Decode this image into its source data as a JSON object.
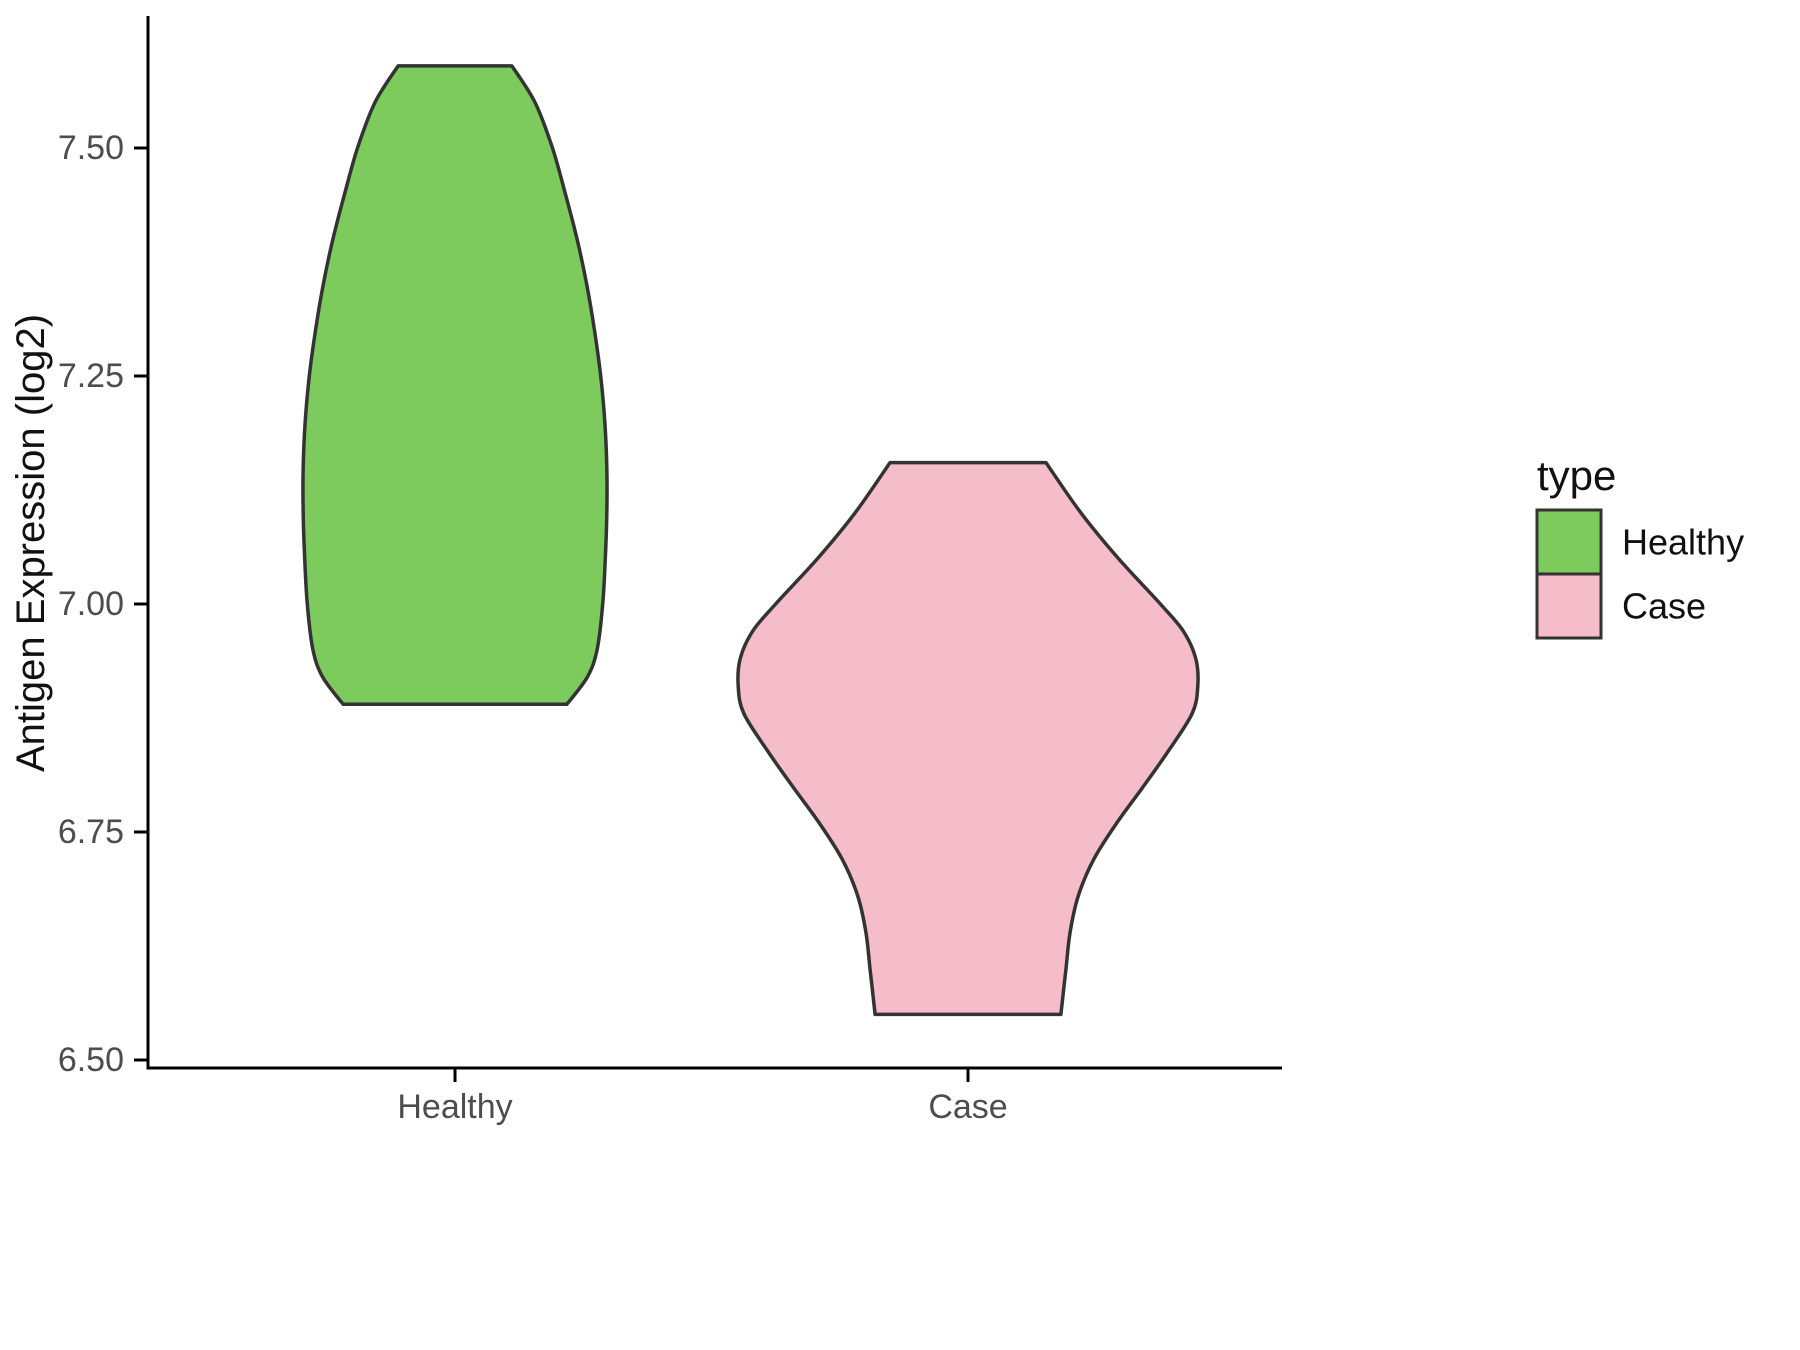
{
  "chart_data": {
    "type": "violin",
    "title": "",
    "xlabel": "",
    "ylabel": "Antigen Expression (log2)",
    "categories": [
      "Healthy",
      "Case"
    ],
    "y_ticks": [
      "6.50",
      "6.75",
      "7.00",
      "7.25",
      "7.50"
    ],
    "ylim": [
      6.5,
      7.6
    ],
    "grid": false,
    "outline_color": "#333333",
    "tick_label_color": "#4D4D4D",
    "legend": {
      "title": "type",
      "position": "right",
      "entries": [
        {
          "label": "Healthy",
          "color": "#7CCB5C"
        },
        {
          "label": "Case",
          "color": "#F5BCC9"
        }
      ]
    },
    "series": [
      {
        "name": "Healthy",
        "color": "#7CCB5C",
        "x_category": "Healthy",
        "y_range": [
          6.89,
          7.59
        ],
        "profile": [
          [
            7.59,
            0.111
          ],
          [
            7.55,
            0.156
          ],
          [
            7.5,
            0.19
          ],
          [
            7.45,
            0.215
          ],
          [
            7.4,
            0.238
          ],
          [
            7.35,
            0.257
          ],
          [
            7.3,
            0.272
          ],
          [
            7.25,
            0.284
          ],
          [
            7.2,
            0.292
          ],
          [
            7.15,
            0.296
          ],
          [
            7.1,
            0.296
          ],
          [
            7.05,
            0.293
          ],
          [
            7.0,
            0.288
          ],
          [
            6.95,
            0.277
          ],
          [
            6.92,
            0.258
          ],
          [
            6.89,
            0.218
          ]
        ]
      },
      {
        "name": "Case",
        "color": "#F5BCC9",
        "x_category": "Case",
        "y_range": [
          6.55,
          7.155
        ],
        "profile": [
          [
            7.155,
            0.152
          ],
          [
            7.1,
            0.22
          ],
          [
            7.05,
            0.293
          ],
          [
            7.0,
            0.375
          ],
          [
            6.97,
            0.42
          ],
          [
            6.94,
            0.444
          ],
          [
            6.91,
            0.448
          ],
          [
            6.88,
            0.437
          ],
          [
            6.84,
            0.392
          ],
          [
            6.8,
            0.342
          ],
          [
            6.76,
            0.29
          ],
          [
            6.72,
            0.245
          ],
          [
            6.68,
            0.215
          ],
          [
            6.64,
            0.199
          ],
          [
            6.6,
            0.191
          ],
          [
            6.55,
            0.181
          ]
        ]
      }
    ]
  }
}
